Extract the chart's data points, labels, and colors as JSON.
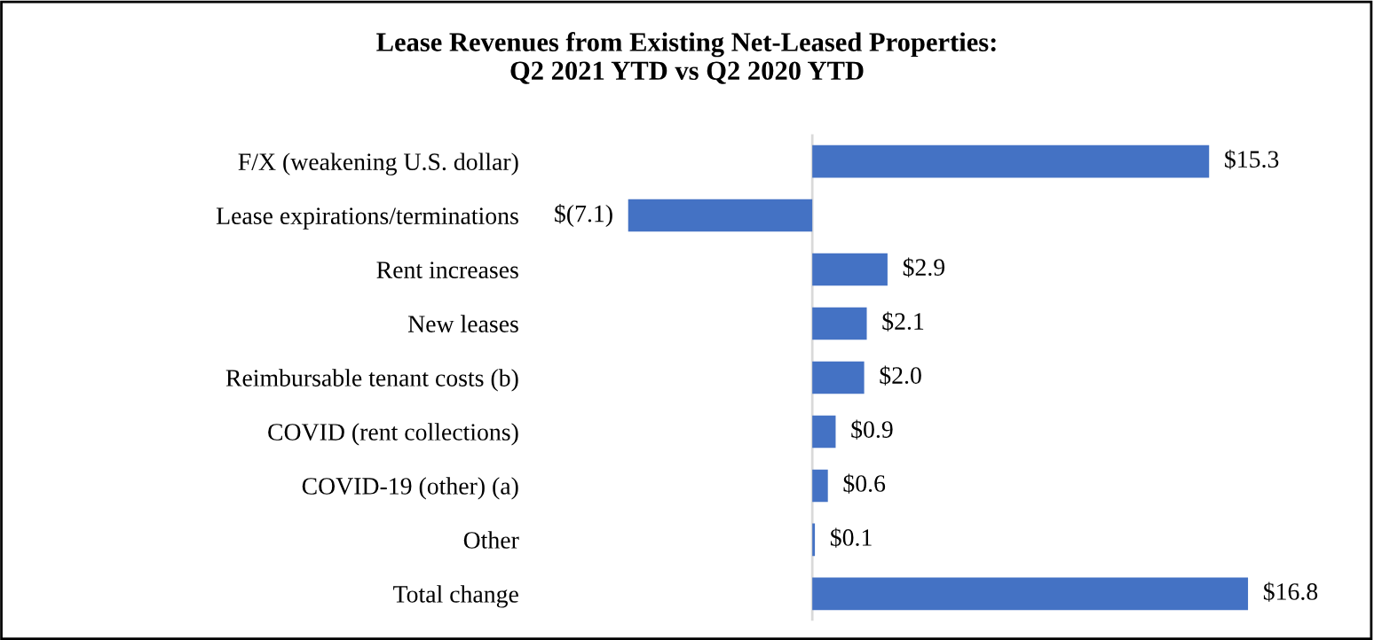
{
  "chart_data": {
    "type": "bar",
    "orientation": "horizontal",
    "title": "Lease Revenues from Existing Net-Leased Properties:\nQ2 2021 YTD vs Q2 2020 YTD",
    "categories": [
      "F/X (weakening U.S. dollar)",
      "Lease expirations/terminations",
      "Rent increases",
      "New leases",
      "Reimbursable tenant costs (b)",
      "COVID (rent collections)",
      "COVID-19 (other) (a)",
      "Other",
      "Total change"
    ],
    "values": [
      15.3,
      -7.1,
      2.9,
      2.1,
      2.0,
      0.9,
      0.6,
      0.1,
      16.8
    ],
    "value_labels": [
      "$15.3",
      "$(7.1)",
      "$2.9",
      "$2.1",
      "$2.0",
      "$0.9",
      "$0.6",
      "$0.1",
      "$16.8"
    ],
    "color": "#4472c4",
    "grid": false,
    "legend": false
  }
}
